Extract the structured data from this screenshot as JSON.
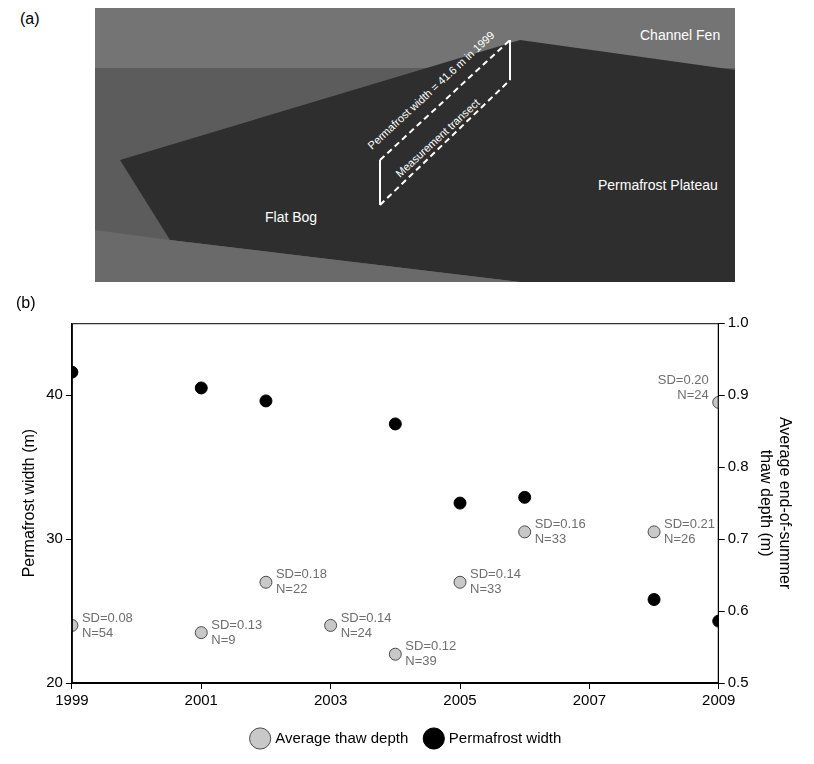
{
  "photo_panel": {
    "label": "(a)",
    "texts": {
      "channel_fen": "Channel Fen",
      "plateau": "Permafrost Plateau",
      "bog": "Flat Bog",
      "transect": "Measurement transect",
      "width": "Permafrost width = 41.6 m in 1999"
    }
  },
  "chart_data": {
    "type": "scatter",
    "title": "(b)",
    "y_label": "Permafrost width (m)",
    "y2_label": "Average end-of-summer thaw depth (m)",
    "xlim": [
      1999,
      2009
    ],
    "xticks": [
      1999,
      2001,
      2003,
      2005,
      2007,
      2009
    ],
    "ylim": [
      20,
      45
    ],
    "yticks": [
      20,
      30,
      40
    ],
    "y2lim": [
      0.5,
      1.0
    ],
    "y2ticks": [
      0.5,
      0.6,
      0.7,
      0.8,
      0.9,
      {
        "value": 1.0,
        "label": "1.0"
      }
    ],
    "grid": false,
    "legend": "bottom",
    "series": [
      {
        "name": "Average thaw depth",
        "color": "#c8c8c8",
        "marker": "circle",
        "axis": "y2",
        "x": [
          1999,
          2001,
          2002,
          2003,
          2004,
          2005,
          2006,
          2008,
          2009
        ],
        "values": [
          0.58,
          0.57,
          0.64,
          0.58,
          0.54,
          0.64,
          0.71,
          0.71,
          0.89
        ],
        "point_labels": [
          [
            "SD=0.08",
            "N=54"
          ],
          [
            "SD=0.13",
            "N=9"
          ],
          [
            "SD=0.18",
            "N=22"
          ],
          [
            "SD=0.14",
            "N=24"
          ],
          [
            "SD=0.12",
            "N=39"
          ],
          [
            "SD=0.14",
            "N=33"
          ],
          [
            "SD=0.16",
            "N=33"
          ],
          [
            "SD=0.21",
            "N=26"
          ],
          [
            "SD=0.20",
            "N=24"
          ]
        ]
      },
      {
        "name": "Permafrost width",
        "color": "#000000",
        "marker": "circle",
        "x": [
          1999,
          2001,
          2002,
          2004,
          2005,
          2006,
          2008,
          2009
        ],
        "values": [
          41.6,
          40.5,
          39.6,
          38.0,
          32.5,
          32.9,
          25.8,
          24.3
        ]
      }
    ]
  }
}
